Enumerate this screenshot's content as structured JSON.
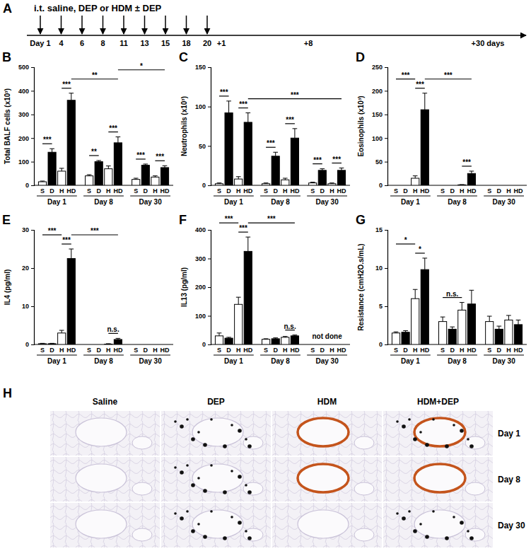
{
  "timeline": {
    "label": "A",
    "title": "i.t. saline, DEP or HDM ± DEP",
    "days": [
      "Day 1",
      "4",
      "6",
      "8",
      "11",
      "13",
      "15",
      "18",
      "20"
    ],
    "followups": [
      "+1",
      "+8",
      "+30 days"
    ]
  },
  "chart_data": [
    {
      "type": "bar",
      "title": "B",
      "y_label": "Total BALF cells (x10³)",
      "categories": [
        "S",
        "D",
        "H",
        "HD",
        "S",
        "D",
        "H",
        "HD",
        "S",
        "D",
        "H",
        "HD"
      ],
      "groups": [
        "Day 1",
        "Day 8",
        "Day 30"
      ],
      "values": [
        15,
        140,
        60,
        360,
        40,
        100,
        70,
        180,
        25,
        85,
        35,
        75
      ],
      "errors": [
        3,
        15,
        12,
        30,
        5,
        5,
        12,
        25,
        5,
        5,
        5,
        8
      ],
      "colors": [
        "#ffffff",
        "#000000",
        "#ffffff",
        "#000000",
        "#ffffff",
        "#000000",
        "#ffffff",
        "#000000",
        "#ffffff",
        "#000000",
        "#ffffff",
        "#000000"
      ],
      "ylim": [
        0,
        500
      ],
      "yticks": [
        0,
        100,
        200,
        300,
        400,
        500
      ],
      "annotations": [
        {
          "text": "***",
          "from": 0,
          "to": 1
        },
        {
          "text": "***",
          "from": 2,
          "to": 3
        },
        {
          "text": "**",
          "from": 3,
          "to": 7
        },
        {
          "text": "**",
          "from": 4,
          "to": 5
        },
        {
          "text": "***",
          "from": 6,
          "to": 7
        },
        {
          "text": "*",
          "from": 7,
          "to": 11
        },
        {
          "text": "***",
          "from": 8,
          "to": 9
        },
        {
          "text": "***",
          "from": 10,
          "to": 11
        }
      ]
    },
    {
      "type": "bar",
      "title": "C",
      "y_label": "Neutrophils (x10³)",
      "categories": [
        "S",
        "D",
        "H",
        "HD",
        "S",
        "D",
        "H",
        "HD",
        "S",
        "D",
        "H",
        "HD"
      ],
      "groups": [
        "Day 1",
        "Day 8",
        "Day 30"
      ],
      "values": [
        2,
        92,
        8,
        80,
        2,
        37,
        7,
        60,
        3,
        19,
        2,
        19
      ],
      "errors": [
        1,
        15,
        3,
        12,
        1,
        5,
        2,
        12,
        1,
        2,
        1,
        3
      ],
      "colors": [
        "#ffffff",
        "#000000",
        "#ffffff",
        "#000000",
        "#ffffff",
        "#000000",
        "#ffffff",
        "#000000",
        "#ffffff",
        "#000000",
        "#ffffff",
        "#000000"
      ],
      "ylim": [
        0,
        150
      ],
      "yticks": [
        0,
        50,
        100,
        150
      ],
      "annotations": [
        {
          "text": "***",
          "from": 0,
          "to": 1
        },
        {
          "text": "***",
          "from": 2,
          "to": 3
        },
        {
          "text": "***",
          "from": 3,
          "to": 11
        },
        {
          "text": "***",
          "from": 4,
          "to": 5
        },
        {
          "text": "***",
          "from": 6,
          "to": 7
        },
        {
          "text": "***",
          "from": 8,
          "to": 9
        },
        {
          "text": "***",
          "from": 10,
          "to": 11
        }
      ]
    },
    {
      "type": "bar",
      "title": "D",
      "y_label": "Eosinophils (x10³)",
      "categories": [
        "S",
        "D",
        "H",
        "HD",
        "S",
        "D",
        "H",
        "HD",
        "S",
        "D",
        "H",
        "HD"
      ],
      "groups": [
        "Day 1",
        "Day 8",
        "Day 30"
      ],
      "values": [
        0,
        0,
        15,
        160,
        0,
        0,
        1,
        25,
        0,
        0,
        0,
        0
      ],
      "errors": [
        0,
        0,
        5,
        35,
        0,
        0,
        0.5,
        5,
        0,
        0,
        0,
        0
      ],
      "colors": [
        "#ffffff",
        "#000000",
        "#ffffff",
        "#000000",
        "#ffffff",
        "#000000",
        "#ffffff",
        "#000000",
        "#ffffff",
        "#000000",
        "#ffffff",
        "#000000"
      ],
      "ylim": [
        0,
        250
      ],
      "yticks": [
        0,
        50,
        100,
        150,
        200,
        250
      ],
      "annotations": [
        {
          "text": "***",
          "from": 0,
          "to": 2
        },
        {
          "text": "***",
          "from": 2,
          "to": 3
        },
        {
          "text": "***",
          "from": 3,
          "to": 7
        },
        {
          "text": "***",
          "from": 6,
          "to": 7
        }
      ]
    },
    {
      "type": "bar",
      "title": "E",
      "y_label": "IL4 (pg/ml)",
      "categories": [
        "S",
        "D",
        "H",
        "HD",
        "S",
        "D",
        "H",
        "HD",
        "S",
        "D",
        "H",
        "HD"
      ],
      "groups": [
        "Day 1",
        "Day 8",
        "Day 30"
      ],
      "values": [
        0.2,
        0.2,
        3,
        22.5,
        0,
        0,
        0.1,
        1.3,
        0,
        0,
        0,
        0
      ],
      "errors": [
        0.1,
        0.1,
        0.7,
        2.5,
        0,
        0,
        0.1,
        0.3,
        0,
        0,
        0,
        0
      ],
      "colors": [
        "#ffffff",
        "#000000",
        "#ffffff",
        "#000000",
        "#ffffff",
        "#000000",
        "#ffffff",
        "#000000",
        "#ffffff",
        "#000000",
        "#ffffff",
        "#000000"
      ],
      "ylim": [
        0,
        30
      ],
      "yticks": [
        0,
        10,
        20,
        30
      ],
      "annotations": [
        {
          "text": "***",
          "from": 0,
          "to": 2
        },
        {
          "text": "***",
          "from": 2,
          "to": 3
        },
        {
          "text": "***",
          "from": 3,
          "to": 7
        },
        {
          "text": "n.s.",
          "from": 6,
          "to": 7
        }
      ]
    },
    {
      "type": "bar",
      "title": "F",
      "y_label": "IL13 (pg/ml)",
      "categories": [
        "S",
        "D",
        "H",
        "HD",
        "S",
        "D",
        "H",
        "HD",
        "S",
        "D",
        "H",
        "HD"
      ],
      "groups": [
        "Day 1",
        "Day 8",
        "Day 30"
      ],
      "group_notes": [
        null,
        null,
        "not done"
      ],
      "values": [
        30,
        22,
        140,
        325,
        18,
        20,
        25,
        30,
        null,
        null,
        null,
        null
      ],
      "errors": [
        10,
        3,
        25,
        50,
        2,
        3,
        3,
        3,
        null,
        null,
        null,
        null
      ],
      "colors": [
        "#ffffff",
        "#000000",
        "#ffffff",
        "#000000",
        "#ffffff",
        "#000000",
        "#ffffff",
        "#000000",
        "#ffffff",
        "#000000",
        "#ffffff",
        "#000000"
      ],
      "ylim": [
        0,
        400
      ],
      "yticks": [
        0,
        100,
        200,
        300,
        400
      ],
      "annotations": [
        {
          "text": "***",
          "from": 0,
          "to": 2
        },
        {
          "text": "***",
          "from": 2,
          "to": 3
        },
        {
          "text": "***",
          "from": 3,
          "to": 7
        },
        {
          "text": "n.s.",
          "from": 6,
          "to": 7
        }
      ]
    },
    {
      "type": "bar",
      "title": "G",
      "y_label": "Resistance (cmH2O.s/mL)",
      "categories": [
        "S",
        "D",
        "H",
        "HD",
        "S",
        "D",
        "H",
        "HD",
        "S",
        "D",
        "H",
        "HD"
      ],
      "groups": [
        "Day 1",
        "Day 8",
        "Day 30"
      ],
      "values": [
        1.5,
        1.6,
        6,
        9.8,
        3,
        2,
        4.5,
        5.3,
        3,
        2,
        3.2,
        2.6
      ],
      "errors": [
        0.15,
        0.2,
        1.2,
        1.5,
        0.6,
        0.3,
        1,
        1.8,
        0.7,
        0.4,
        0.6,
        0.6
      ],
      "colors": [
        "#ffffff",
        "#000000",
        "#ffffff",
        "#000000",
        "#ffffff",
        "#000000",
        "#ffffff",
        "#000000",
        "#ffffff",
        "#000000",
        "#ffffff",
        "#000000"
      ],
      "ylim": [
        0,
        15
      ],
      "yticks": [
        0,
        5,
        10,
        15
      ],
      "annotations": [
        {
          "text": "*",
          "from": 0,
          "to": 2
        },
        {
          "text": "*",
          "from": 2,
          "to": 3
        },
        {
          "text": "n.s.",
          "from": 4,
          "to": 6
        }
      ]
    }
  ],
  "micrographs": {
    "label": "H",
    "columns": [
      "Saline",
      "DEP",
      "HDM",
      "HDM+DEP"
    ],
    "rows": [
      "Day 1",
      "Day 8",
      "Day 30"
    ]
  }
}
